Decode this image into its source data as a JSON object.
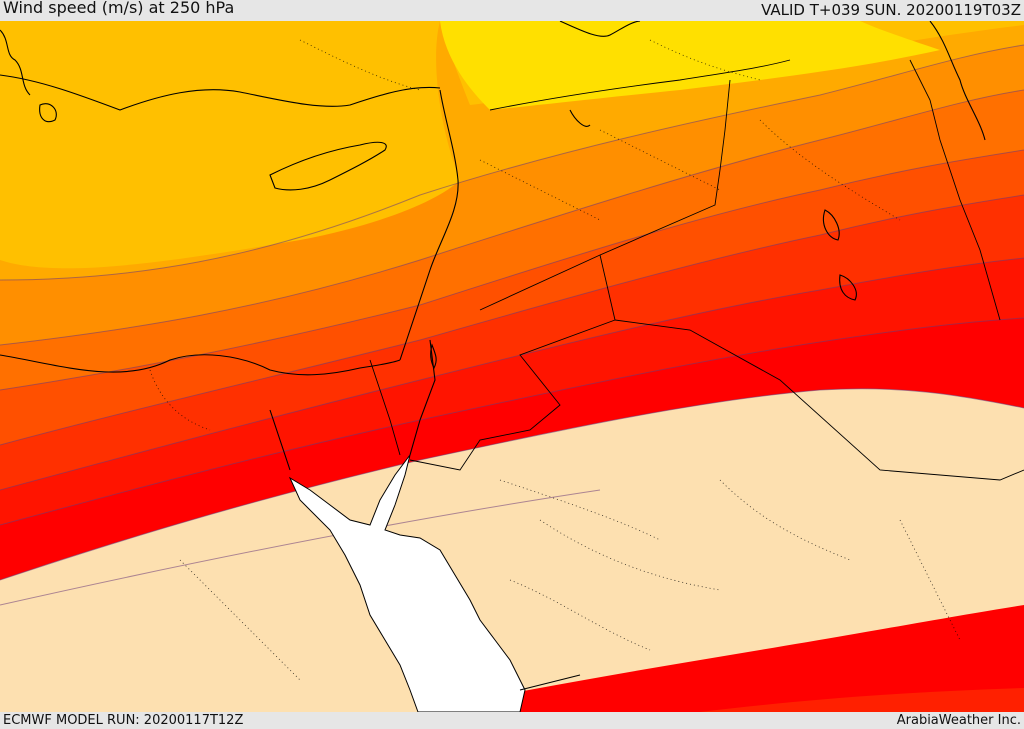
{
  "header": {
    "title": "Wind speed (m/s) at 250 hPa",
    "valid": "VALID T+039 SUN. 20200119T03Z"
  },
  "footer": {
    "model_run": "ECMWF MODEL RUN: 20200117T12Z",
    "credit": "ArabiaWeather Inc."
  },
  "map": {
    "variable": "Wind speed",
    "level": "250 hPa",
    "colors": {
      "yellow": "#ffe000",
      "band_1": "#ffc000",
      "band_2": "#ffaa00",
      "band_3": "#ff8f00",
      "band_4": "#ff7000",
      "band_5": "#ff5000",
      "band_6": "#ff3000",
      "band_7": "#ff1400",
      "band_8": "#ff0000",
      "calm": "#fde0b0",
      "sea": "#ffffff"
    }
  }
}
